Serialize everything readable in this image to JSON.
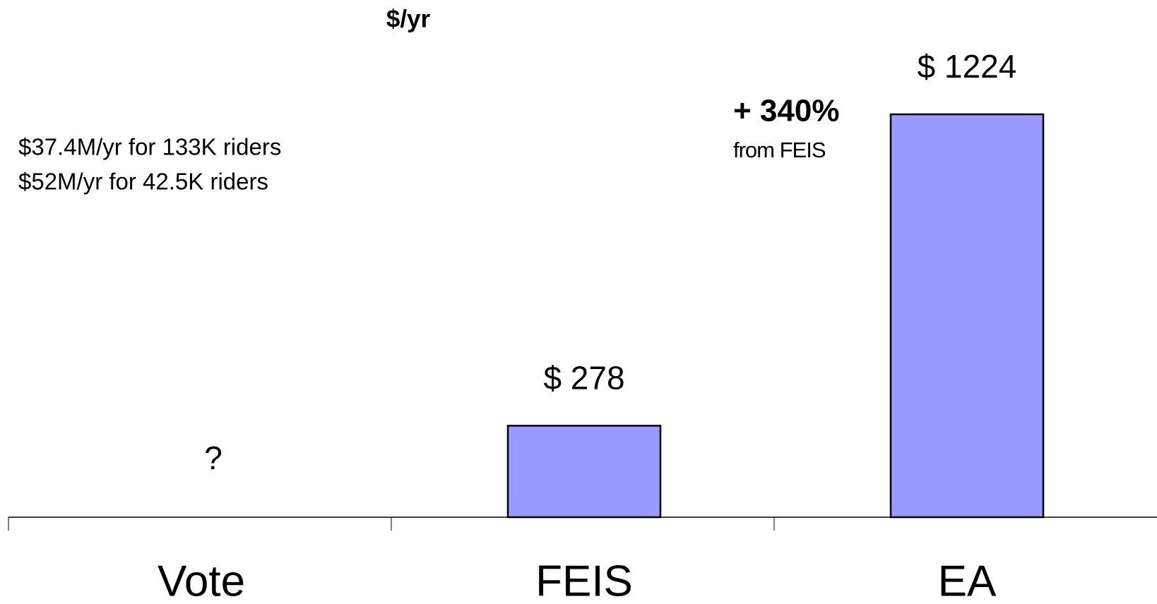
{
  "chart_data": {
    "type": "bar",
    "y_axis_label": "$/yr",
    "categories": [
      "Vote",
      "FEIS",
      "EA"
    ],
    "values": [
      null,
      278,
      1224
    ],
    "value_labels": [
      "?",
      "$ 278",
      "$ 1224"
    ],
    "color": "#9999ff",
    "annotations": [
      "$37.4M/yr for 133K riders",
      "$52M/yr for 42.5K riders",
      "+ 340%",
      "from FEIS"
    ]
  }
}
